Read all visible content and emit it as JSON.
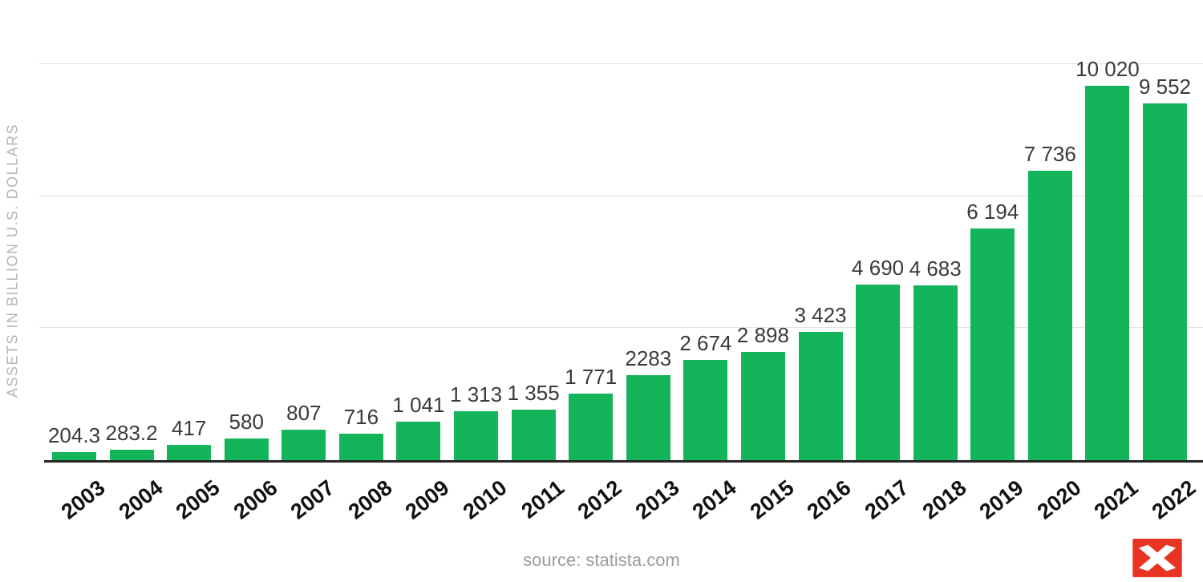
{
  "chart_data": {
    "type": "bar",
    "title": "",
    "xlabel": "",
    "ylabel": "ASSETS IN BILLION U.S. DOLLARS",
    "categories": [
      "2003",
      "2004",
      "2005",
      "2006",
      "2007",
      "2008",
      "2009",
      "2010",
      "2011",
      "2012",
      "2013",
      "2014",
      "2015",
      "2016",
      "2017",
      "2018",
      "2019",
      "2020",
      "2021",
      "2022"
    ],
    "values": [
      204.3,
      283.2,
      417,
      580,
      807,
      716,
      1041,
      1313,
      1355,
      1771,
      2283,
      2674,
      2898,
      3423,
      4690,
      4683,
      6194,
      7736,
      10020,
      9552
    ],
    "value_labels": [
      "204.3",
      "283.2",
      "417",
      "580",
      "807",
      "716",
      "1 041",
      "1 313",
      "1 355",
      "1 771",
      "2283",
      "2 674",
      "2 898",
      "3 423",
      "4 690",
      "4 683",
      "6 194",
      "7 736",
      "10 020",
      "9 552"
    ],
    "ylim": [
      0,
      10600
    ],
    "grid": true,
    "gridline_count": 3,
    "legend": false,
    "bar_color": "#14b45a"
  },
  "footer": {
    "source": "source: statista.com"
  },
  "branding": {
    "logo_color": "#ea3423",
    "logo_name": "statista-logo"
  }
}
